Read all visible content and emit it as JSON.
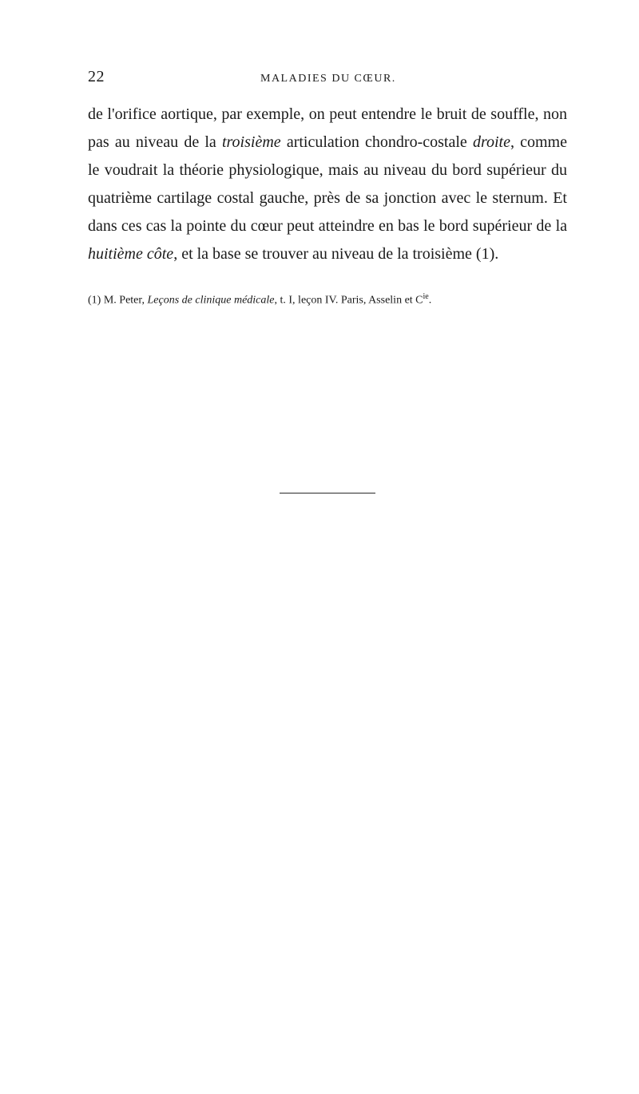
{
  "header": {
    "page_number": "22",
    "running_title": "MALADIES DU CŒUR."
  },
  "paragraph": {
    "p1_start": "de l'orifice aortique, par exemple, on peut entendre le bruit de souffle, non pas au niveau de la ",
    "p1_italic1": "troisième",
    "p1_mid1": " articulation chondro-costale ",
    "p1_italic2": "droite",
    "p1_mid2": ", comme le voudrait la théorie physiologique, mais au niveau du bord supérieur du quatrième cartilage costal gauche, près de sa jonction avec le sternum. Et dans ces cas la pointe du cœur peut atteindre en bas le bord supérieur de la ",
    "p1_italic3": "huitième côte",
    "p1_end": ", et la base se trouver au niveau de la troisième (1)."
  },
  "footnote": {
    "marker": "(1)",
    "text_start": " M. Peter, ",
    "text_italic": "Leçons de clinique médicale",
    "text_end": ", t. I, leçon IV. Paris, Asselin et C",
    "text_sup": "ie",
    "text_period": "."
  },
  "styling": {
    "page_bg": "#ffffff",
    "text_color": "#1a1a1a",
    "body_fontsize": 20,
    "body_lineheight": 1.75,
    "header_fontsize": 14,
    "pagenum_fontsize": 20,
    "footnote_fontsize": 14,
    "divider_width": 120,
    "divider_color": "#2a2a2a"
  }
}
